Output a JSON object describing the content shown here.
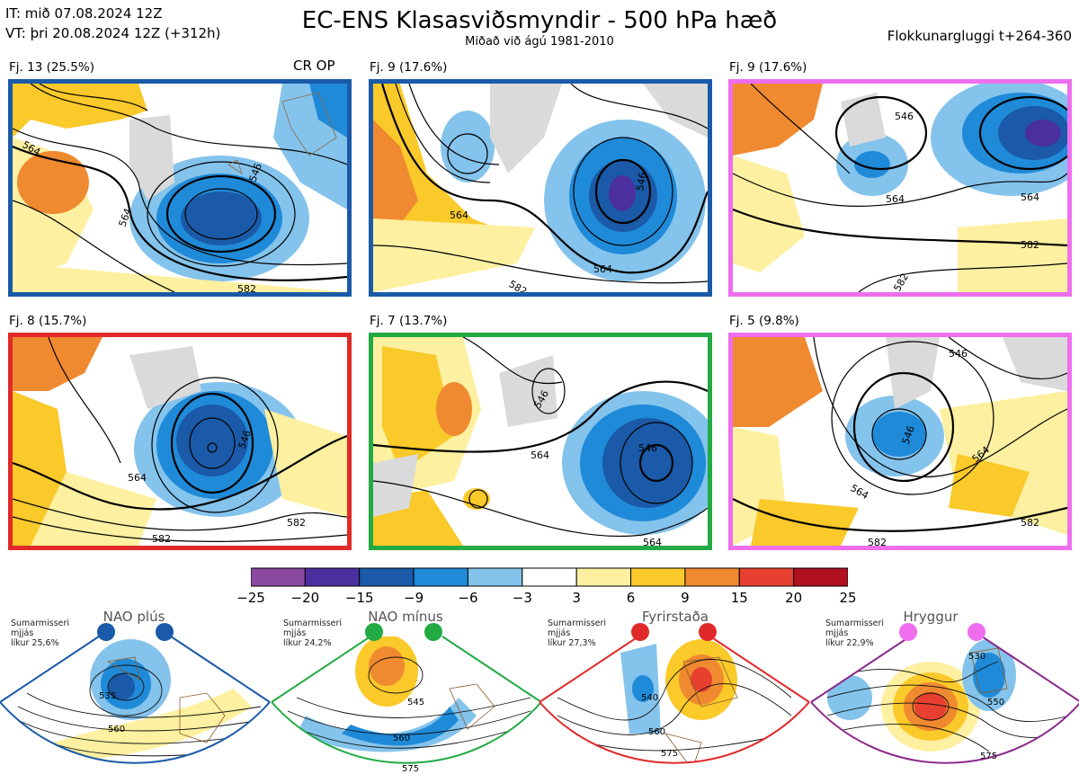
{
  "header": {
    "init_time": "IT: mið 07.08.2024 12Z",
    "valid_time": "VT: þri 20.08.2024 12Z  (+312h)",
    "title": "EC-ENS Klasasviðsmyndir - 500 hPa hæð",
    "subtitle": "Miðað við ágú 1981-2010",
    "window": "Flokkunargluggi t+264-360"
  },
  "clusters": [
    {
      "label": "Fj. 13 (25.5%)",
      "badge": "CR OP",
      "border": "#1a5aa8"
    },
    {
      "label": "Fj. 9 (17.6%)",
      "border": "#1a5aa8"
    },
    {
      "label": "Fj. 9 (17.6%)",
      "border": "#ee6eee"
    },
    {
      "label": "Fj. 8 (15.7%)",
      "border": "#e02a2a"
    },
    {
      "label": "Fj. 7 (13.7%)",
      "border": "#22aa44"
    },
    {
      "label": "Fj. 5 (9.8%)",
      "border": "#ee6eee"
    }
  ],
  "contour_labels": [
    "546",
    "564",
    "582"
  ],
  "colorbar": {
    "ticks": [
      "−25",
      "−20",
      "−15",
      "−9",
      "−6",
      "−3",
      "3",
      "6",
      "9",
      "15",
      "20",
      "25"
    ],
    "colors": [
      "#8a48a0",
      "#4b2f9e",
      "#1a5aa8",
      "#1f8ad8",
      "#84c3ec",
      "#ffffff",
      "#fdf0a0",
      "#fac92a",
      "#f08a30",
      "#e84030",
      "#b01020"
    ]
  },
  "regimes": [
    {
      "name": "NAO plús",
      "line1": "Sumarmisseri",
      "line2": "mjjás",
      "line3": "líkur 25,6%",
      "dot": "#1a5aa8",
      "border": "#1a5aa8",
      "labels": [
        "535",
        "560"
      ]
    },
    {
      "name": "NAO mínus",
      "line1": "Sumarmisseri",
      "line2": "mjjás",
      "line3": "líkur 24,2%",
      "dot": "#22aa44",
      "border": "#22aa44",
      "labels": [
        "545",
        "560",
        "575"
      ]
    },
    {
      "name": "Fyrirstaða",
      "line1": "Sumarmisseri",
      "line2": "mjjás",
      "line3": "líkur 27,3%",
      "dot": "#e02a2a",
      "border": "#e02a2a",
      "labels": [
        "540",
        "560",
        "575"
      ]
    },
    {
      "name": "Hryggur",
      "line1": "Sumarmisseri",
      "line2": "mjjás",
      "line3": "líkur 22,9%",
      "dot": "#ee6eee",
      "border": "#8b2a8b",
      "labels": [
        "530",
        "550",
        "575"
      ]
    }
  ]
}
